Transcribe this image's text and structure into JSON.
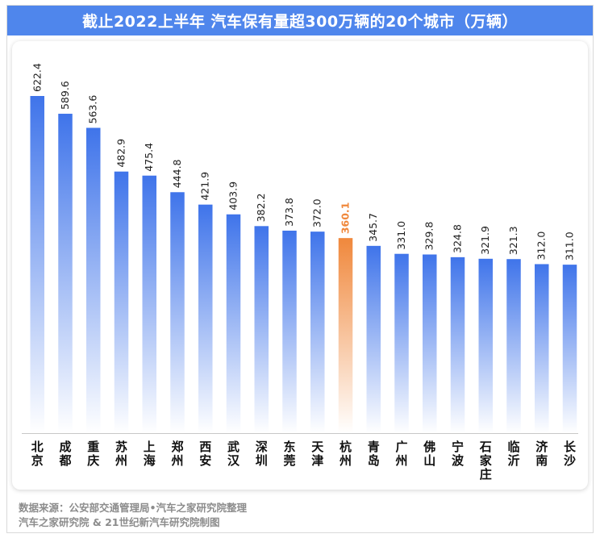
{
  "title": "截止2022上半年 汽车保有量超300万辆的20个城市（万辆）",
  "colors": {
    "title_bg": "#4f86ec",
    "bar_top": "#3f74ea",
    "bar_bottom": "#ffffff",
    "highlight_top": "#f0883c",
    "highlight_label": "#f0883c",
    "label": "#222222",
    "footer": "#8c8c8c"
  },
  "chart_data": {
    "type": "bar",
    "title": "截止2022上半年 汽车保有量超300万辆的20个城市（万辆）",
    "categories": [
      "北京",
      "成都",
      "重庆",
      "苏州",
      "上海",
      "郑州",
      "西安",
      "武汉",
      "深圳",
      "东莞",
      "天津",
      "杭州",
      "青岛",
      "广州",
      "佛山",
      "宁波",
      "石家庄",
      "临沂",
      "济南",
      "长沙"
    ],
    "values": [
      622.4,
      589.6,
      563.6,
      482.9,
      475.4,
      444.8,
      421.9,
      403.9,
      382.2,
      373.8,
      372.0,
      360.1,
      345.7,
      331.0,
      329.8,
      324.8,
      321.9,
      321.3,
      312.0,
      311.0
    ],
    "value_labels": [
      "622.4",
      "589.6",
      "563.6",
      "482.9",
      "475.4",
      "444.8",
      "421.9",
      "403.9",
      "382.2",
      "373.8",
      "372.0",
      "360.1",
      "345.7",
      "331.0",
      "329.8",
      "324.8",
      "321.9",
      "321.3",
      "312.0",
      "311.0"
    ],
    "highlight": "杭州",
    "ylim": [
      0,
      640
    ],
    "grid": false,
    "legend": "none",
    "xlabel": "",
    "ylabel": ""
  },
  "footer": {
    "line1": "数据来源：公安部交通管理局•汽车之家研究院整理",
    "line2": "汽车之家研究院 & 21世纪新汽车研究院制图"
  }
}
